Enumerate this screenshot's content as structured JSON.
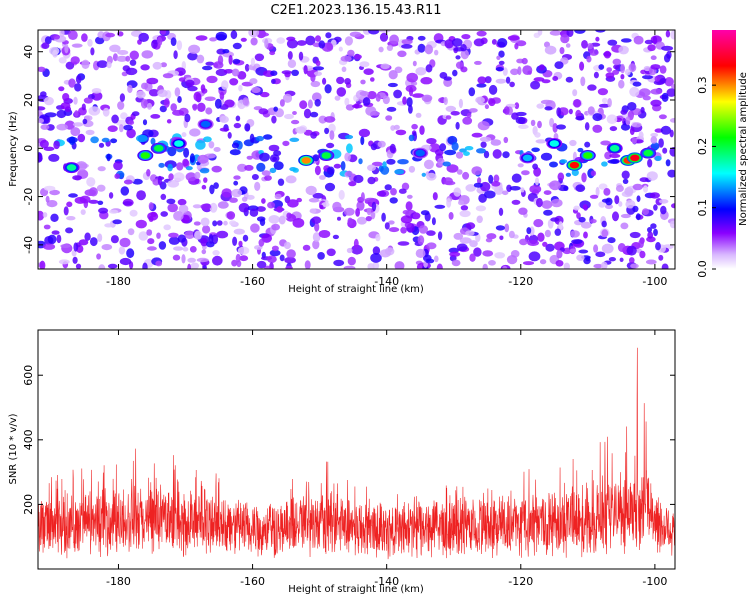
{
  "title": "C2E1.2023.136.15.43.R11",
  "chart_data": [
    {
      "type": "heatmap",
      "xlabel": "Height of straight line (km)",
      "ylabel": "Frequency (Hz)",
      "xlim": [
        -192,
        -97
      ],
      "ylim": [
        -50,
        49
      ],
      "x_ticks": [
        -180,
        -160,
        -140,
        -120,
        -100
      ],
      "x_tick_labels": [
        "-180",
        "-160",
        "-140",
        "-120",
        "-100"
      ],
      "y_ticks": [
        40,
        20,
        0,
        -20,
        -40
      ],
      "y_tick_labels": [
        "40",
        "20",
        "0",
        "-20",
        "-40"
      ],
      "colorbar": {
        "label": "Normalized spectral amplitude",
        "range": [
          0,
          0.39
        ],
        "ticks": [
          0.0,
          0.1,
          0.2,
          0.3
        ],
        "tick_labels": [
          "0.0",
          "0.1",
          "0.2",
          "0.3"
        ],
        "colors": [
          "#ffffff",
          "#8a00ff",
          "#0000ff",
          "#00ffff",
          "#00ff00",
          "#ffff00",
          "#ff0000",
          "#ff00aa"
        ]
      },
      "background_amplitude": 0.05,
      "signal_band": {
        "frequency_center": -3,
        "frequency_halfwidth": 8
      },
      "hotspots": [
        {
          "x": -187,
          "y": -8,
          "amplitude": 0.18
        },
        {
          "x": -176,
          "y": -3,
          "amplitude": 0.22
        },
        {
          "x": -174,
          "y": 0,
          "amplitude": 0.2
        },
        {
          "x": -171,
          "y": 2,
          "amplitude": 0.16
        },
        {
          "x": -167,
          "y": 10,
          "amplitude": 0.12
        },
        {
          "x": -152,
          "y": -5,
          "amplitude": 0.3
        },
        {
          "x": -149,
          "y": -3,
          "amplitude": 0.2
        },
        {
          "x": -135,
          "y": -2,
          "amplitude": 0.12
        },
        {
          "x": -119,
          "y": -4,
          "amplitude": 0.14
        },
        {
          "x": -115,
          "y": 2,
          "amplitude": 0.16
        },
        {
          "x": -112,
          "y": -7,
          "amplitude": 0.33
        },
        {
          "x": -110,
          "y": -3,
          "amplitude": 0.22
        },
        {
          "x": -106,
          "y": 0,
          "amplitude": 0.18
        },
        {
          "x": -104,
          "y": -5,
          "amplitude": 0.32
        },
        {
          "x": -103,
          "y": -4,
          "amplitude": 0.34
        },
        {
          "x": -101,
          "y": -2,
          "amplitude": 0.2
        }
      ]
    },
    {
      "type": "line",
      "xlabel": "Height of straight line (km)",
      "ylabel": "SNR (10 * v/v)",
      "xlim": [
        -192,
        -97
      ],
      "ylim": [
        0,
        740
      ],
      "x_ticks": [
        -180,
        -160,
        -140,
        -120,
        -100
      ],
      "x_tick_labels": [
        "-180",
        "-160",
        "-140",
        "-120",
        "-100"
      ],
      "y_ticks": [
        200,
        400,
        600
      ],
      "y_tick_labels": [
        "200",
        "400",
        "600"
      ],
      "series_color": "#ee2222",
      "envelope": {
        "x": [
          -192,
          -185,
          -180,
          -176,
          -173,
          -168,
          -162,
          -156,
          -152,
          -148,
          -144,
          -138,
          -132,
          -126,
          -120,
          -115,
          -110,
          -106,
          -104,
          -102.5,
          -101,
          -99,
          -97
        ],
        "y": [
          270,
          320,
          360,
          380,
          400,
          330,
          250,
          220,
          340,
          330,
          260,
          230,
          260,
          250,
          300,
          350,
          380,
          420,
          480,
          720,
          560,
          260,
          280
        ]
      },
      "baseline": 140
    }
  ]
}
